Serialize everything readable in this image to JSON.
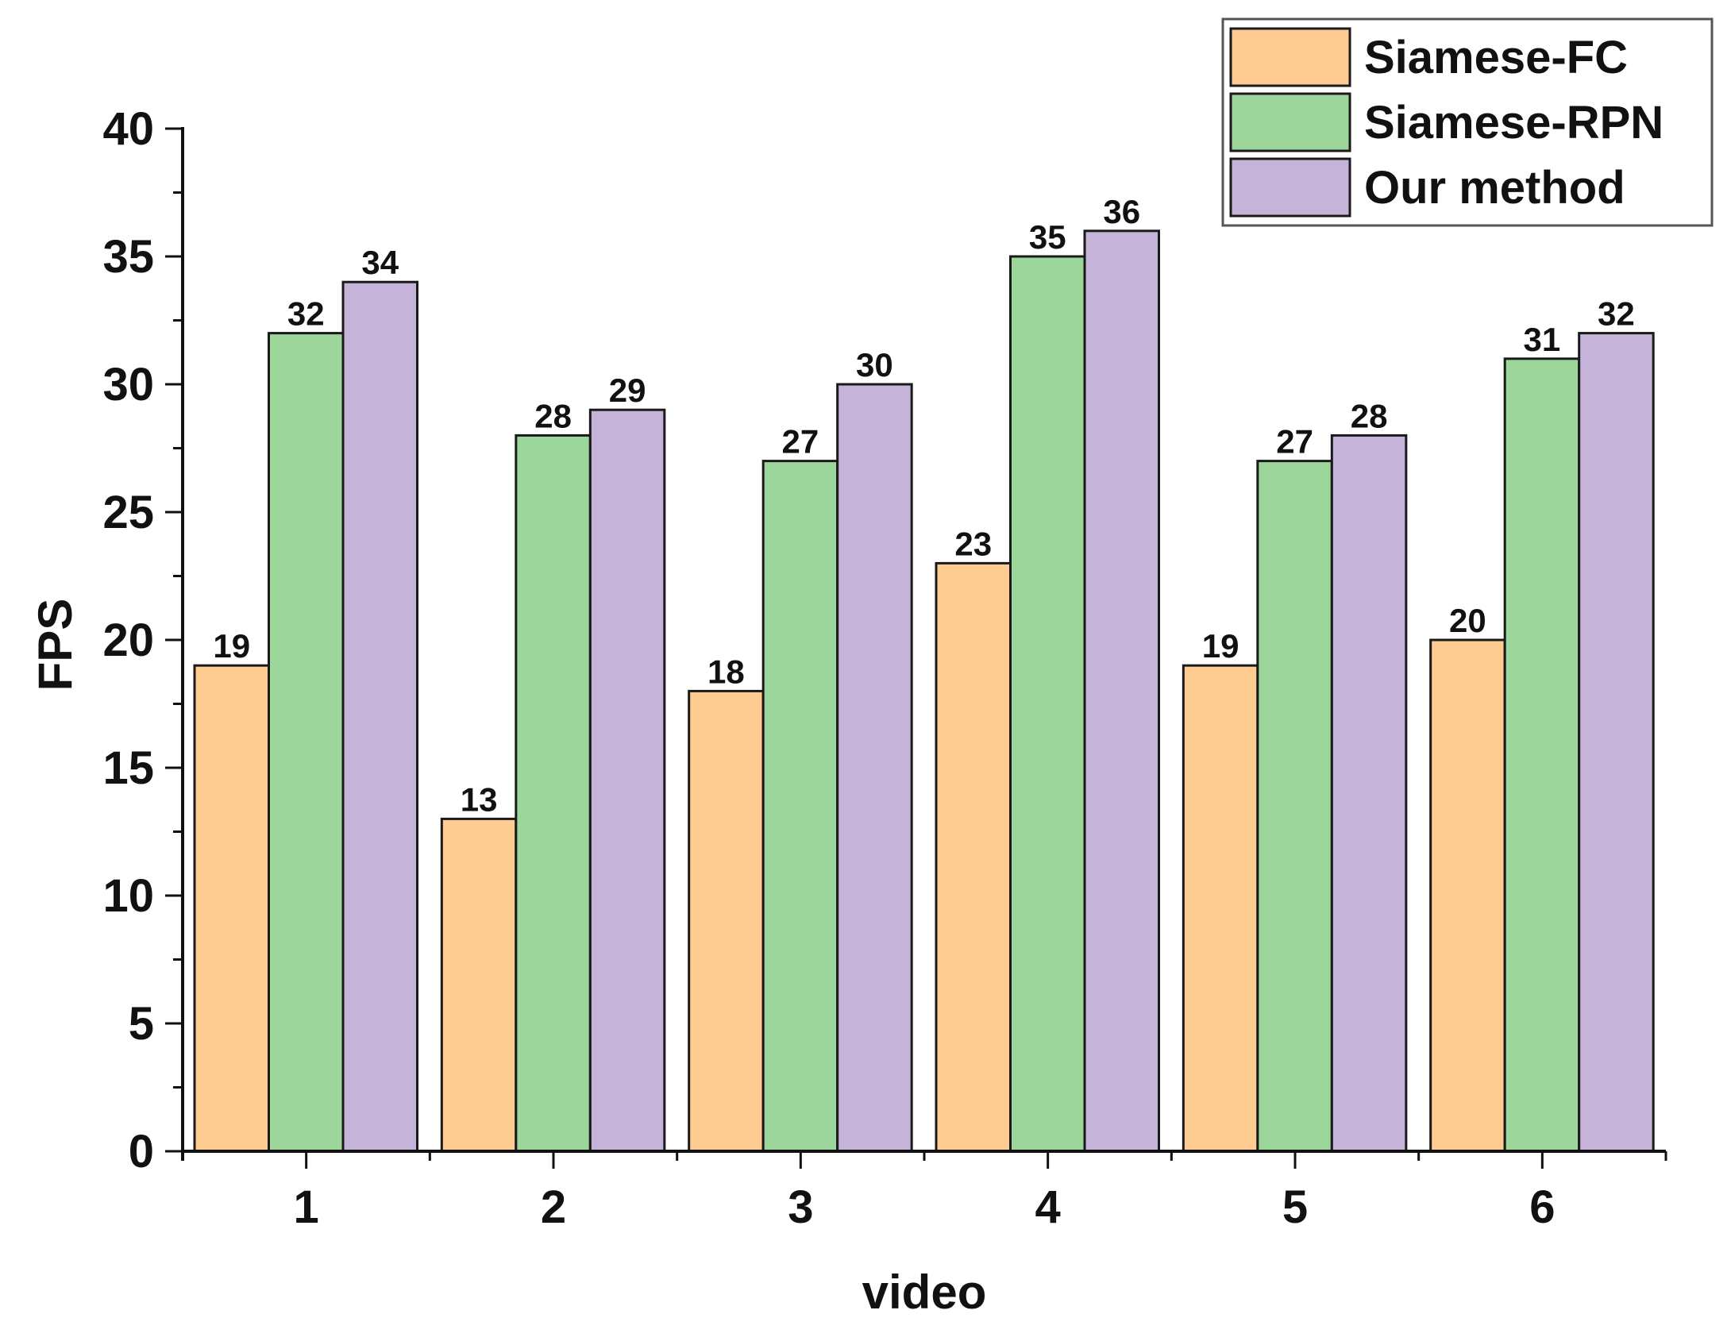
{
  "chart_data": {
    "type": "bar",
    "title": "",
    "xlabel": "video",
    "ylabel": "FPS",
    "categories": [
      "1",
      "2",
      "3",
      "4",
      "5",
      "6"
    ],
    "series": [
      {
        "name": "Siamese-FC",
        "color": "#FECB91",
        "values": [
          19,
          13,
          18,
          23,
          19,
          20
        ]
      },
      {
        "name": "Siamese-RPN",
        "color": "#9DD69B",
        "values": [
          32,
          28,
          27,
          35,
          27,
          31
        ]
      },
      {
        "name": "Our method",
        "color": "#C6B3D9",
        "values": [
          34,
          29,
          30,
          36,
          28,
          32
        ]
      }
    ],
    "ylim": [
      0,
      40
    ],
    "yticks": [
      "0",
      "5",
      "10",
      "15",
      "20",
      "25",
      "30",
      "35",
      "40"
    ],
    "grid": false,
    "legend_position": "top-right",
    "data_labels": true
  }
}
